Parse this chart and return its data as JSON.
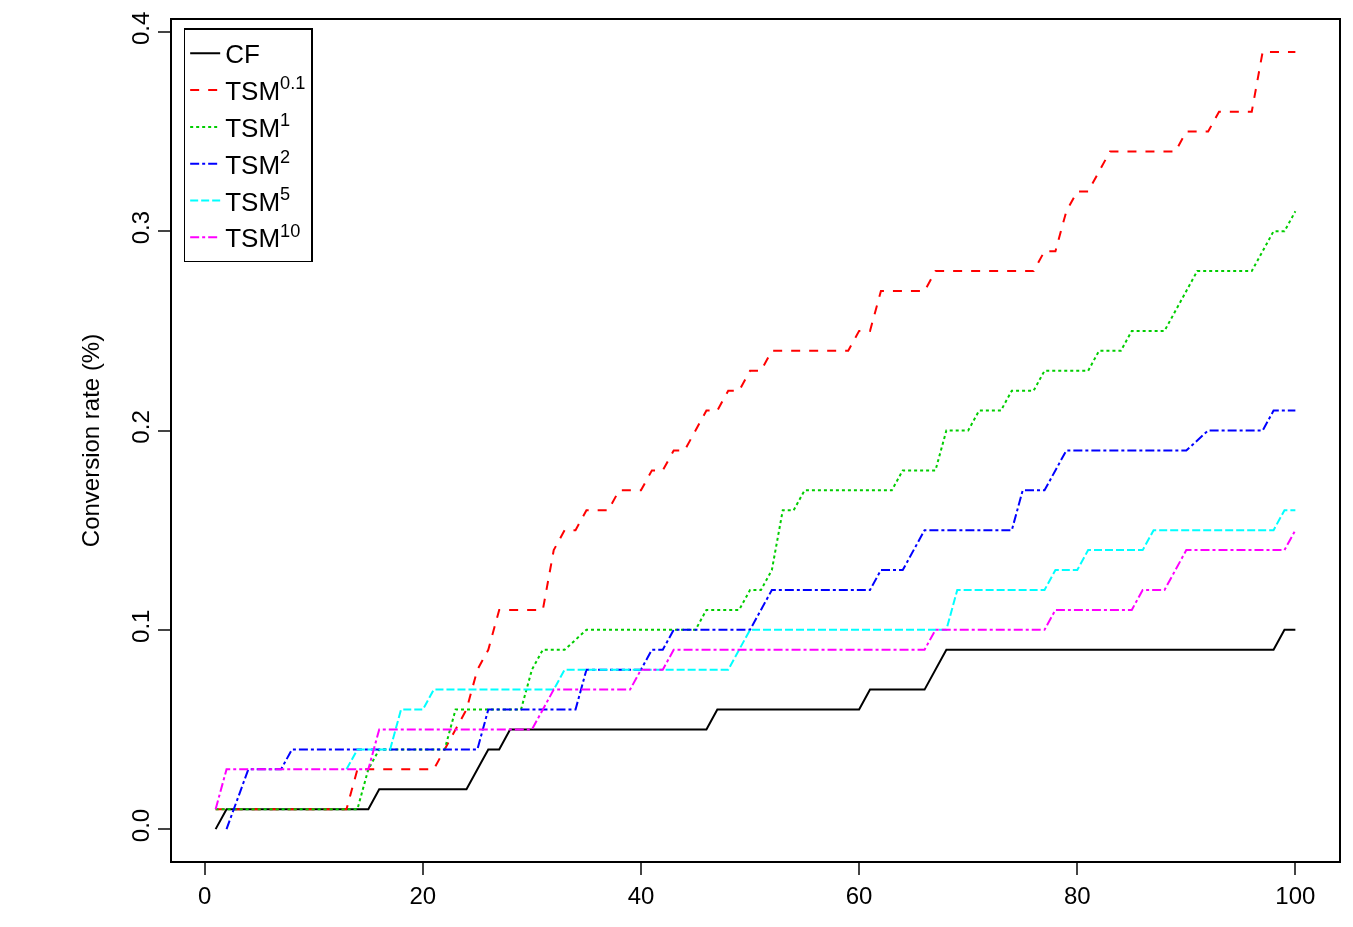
{
  "chart_data": {
    "type": "line",
    "ylabel": "Conversion rate (%)",
    "xlim": [
      -3,
      104
    ],
    "xticks": [
      0,
      20,
      40,
      60,
      80,
      100
    ],
    "ylim": [
      -0.016,
      0.406
    ],
    "yticks": [
      {
        "value": 0,
        "label": "0.0"
      },
      {
        "value": 0.1,
        "label": "0.1"
      },
      {
        "value": 0.2,
        "label": "0.2"
      },
      {
        "value": 0.3,
        "label": "0.3"
      },
      {
        "value": 0.4,
        "label": "0.4"
      }
    ],
    "grid": false,
    "legend": "top left",
    "marker": "none",
    "series": [
      {
        "name": "CF",
        "color": "#000000",
        "line_style": "solid",
        "x": [
          1,
          2,
          15,
          16,
          24,
          26,
          27,
          28,
          46,
          47,
          60,
          61,
          66,
          68,
          98,
          99,
          100
        ],
        "values": [
          0,
          0.01,
          0.01,
          0.02,
          0.02,
          0.04,
          0.04,
          0.05,
          0.05,
          0.06,
          0.06,
          0.07,
          0.07,
          0.09,
          0.09,
          0.1,
          0.1
        ]
      },
      {
        "name": "TSM$^{0.1}$",
        "color": "#ff0000",
        "line_style": "dashed",
        "x": [
          1,
          13,
          14,
          21,
          22,
          24,
          25,
          26,
          27,
          31,
          32,
          33,
          34,
          35,
          37,
          38,
          40,
          41,
          42,
          43,
          44,
          45,
          46,
          47,
          48,
          49,
          50,
          51,
          52,
          59,
          60,
          61,
          62,
          66,
          67,
          76,
          77,
          78,
          79,
          80,
          81,
          82,
          83,
          89,
          90,
          92,
          93,
          96,
          97,
          100
        ],
        "values": [
          0.01,
          0.01,
          0.03,
          0.03,
          0.04,
          0.06,
          0.08,
          0.09,
          0.11,
          0.11,
          0.14,
          0.15,
          0.15,
          0.16,
          0.16,
          0.17,
          0.17,
          0.18,
          0.18,
          0.19,
          0.19,
          0.2,
          0.21,
          0.21,
          0.22,
          0.22,
          0.23,
          0.23,
          0.24,
          0.24,
          0.25,
          0.25,
          0.27,
          0.27,
          0.28,
          0.28,
          0.29,
          0.29,
          0.31,
          0.32,
          0.32,
          0.33,
          0.34,
          0.34,
          0.35,
          0.35,
          0.36,
          0.36,
          0.39,
          0.39
        ]
      },
      {
        "name": "TSM$^{1}$",
        "color": "#00cd00",
        "line_style": "dotted",
        "x": [
          1,
          14,
          15,
          16,
          22,
          23,
          29,
          30,
          31,
          33,
          35,
          45,
          46,
          49,
          50,
          51,
          52,
          53,
          54,
          55,
          63,
          64,
          67,
          68,
          70,
          71,
          73,
          74,
          76,
          77,
          81,
          82,
          84,
          85,
          88,
          91,
          96,
          98,
          99,
          100
        ],
        "values": [
          0.01,
          0.01,
          0.03,
          0.04,
          0.04,
          0.06,
          0.06,
          0.08,
          0.09,
          0.09,
          0.1,
          0.1,
          0.11,
          0.11,
          0.12,
          0.12,
          0.13,
          0.16,
          0.16,
          0.17,
          0.17,
          0.18,
          0.18,
          0.2,
          0.2,
          0.21,
          0.21,
          0.22,
          0.22,
          0.23,
          0.23,
          0.24,
          0.24,
          0.25,
          0.25,
          0.28,
          0.28,
          0.3,
          0.3,
          0.31
        ]
      },
      {
        "name": "TSM$^{2}$",
        "color": "#0000ff",
        "line_style": "dashdot",
        "x": [
          2,
          4,
          7,
          8,
          25,
          26,
          34,
          35,
          40,
          41,
          42,
          43,
          50,
          51,
          52,
          61,
          62,
          64,
          66,
          74,
          75,
          77,
          79,
          90,
          92,
          97,
          98,
          100
        ],
        "values": [
          0,
          0.03,
          0.03,
          0.04,
          0.04,
          0.06,
          0.06,
          0.08,
          0.08,
          0.09,
          0.09,
          0.1,
          0.1,
          0.11,
          0.12,
          0.12,
          0.13,
          0.13,
          0.15,
          0.15,
          0.17,
          0.17,
          0.19,
          0.19,
          0.2,
          0.2,
          0.21,
          0.21
        ]
      },
      {
        "name": "TSM$^{5}$",
        "color": "#00ffff",
        "line_style": "longdash",
        "x": [
          13,
          14,
          17,
          18,
          20,
          21,
          32,
          33,
          48,
          50,
          68,
          69,
          77,
          78,
          80,
          81,
          86,
          87,
          98,
          99,
          100
        ],
        "values": [
          0.03,
          0.04,
          0.04,
          0.06,
          0.06,
          0.07,
          0.07,
          0.08,
          0.08,
          0.1,
          0.1,
          0.12,
          0.12,
          0.13,
          0.13,
          0.14,
          0.14,
          0.15,
          0.15,
          0.16,
          0.16
        ]
      },
      {
        "name": "TSM$^{10}$",
        "color": "#ff00ff",
        "line_style": "dashdot",
        "x": [
          1,
          2,
          15,
          16,
          30,
          32,
          39,
          40,
          42,
          43,
          66,
          67,
          77,
          78,
          85,
          86,
          88,
          90,
          99,
          100
        ],
        "values": [
          0.01,
          0.03,
          0.03,
          0.05,
          0.05,
          0.07,
          0.07,
          0.08,
          0.08,
          0.09,
          0.09,
          0.1,
          0.1,
          0.11,
          0.11,
          0.12,
          0.12,
          0.14,
          0.14,
          0.15
        ]
      }
    ]
  }
}
